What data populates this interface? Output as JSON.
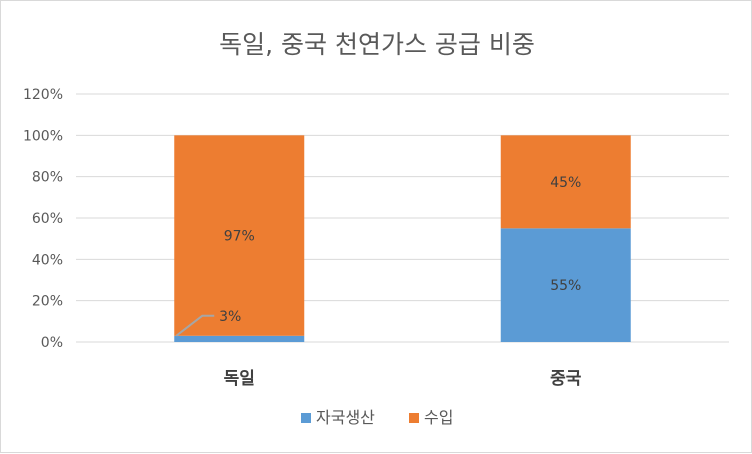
{
  "chart_data": {
    "type": "bar",
    "stacked": true,
    "title": "독일, 중국 천연가스 공급 비중",
    "categories": [
      "독일",
      "중국"
    ],
    "series": [
      {
        "name": "자국생산",
        "values": [
          3,
          55
        ],
        "labels": [
          "3%",
          "55%"
        ],
        "color": "#5b9bd5"
      },
      {
        "name": "수입",
        "values": [
          97,
          45
        ],
        "labels": [
          "97%",
          "45%"
        ],
        "color": "#ed7d31"
      }
    ],
    "ylim": [
      0,
      120
    ],
    "yticks": [
      0,
      20,
      40,
      60,
      80,
      100,
      120
    ],
    "ytick_labels": [
      "0%",
      "20%",
      "40%",
      "60%",
      "80%",
      "100%",
      "120%"
    ],
    "grid": true,
    "legend": "bottom",
    "gridline_color": "#d9d9d9",
    "leader_line_color": "#a6a6a6"
  }
}
